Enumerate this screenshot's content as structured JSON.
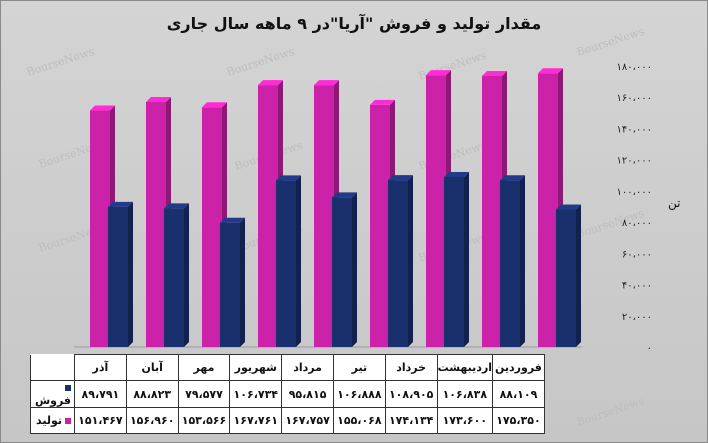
{
  "chart_data": {
    "type": "bar",
    "title": "مقدار تولید و فروش \"آریا\"در ۹ ماهه سال جاری",
    "ylabel": "تن",
    "ylim": [
      0,
      180000
    ],
    "y_ticks": [
      "۱۸۰،۰۰۰",
      "۱۶۰،۰۰۰",
      "۱۴۰،۰۰۰",
      "۱۲۰،۰۰۰",
      "۱۰۰،۰۰۰",
      "۸۰،۰۰۰",
      "۶۰،۰۰۰",
      "۴۰،۰۰۰",
      "۲۰،۰۰۰",
      "۰"
    ],
    "y_tick_values": [
      180000,
      160000,
      140000,
      120000,
      100000,
      80000,
      60000,
      40000,
      20000,
      0
    ],
    "categories": [
      "آذر",
      "آبان",
      "مهر",
      "شهریور",
      "مرداد",
      "تیر",
      "خرداد",
      "اردیبهشت",
      "فروردین"
    ],
    "series": [
      {
        "name": "فروش",
        "color": "#1a2f6e",
        "values": [
          89791,
          88823,
          79577,
          106734,
          95815,
          106888,
          108905,
          106838,
          88109
        ],
        "labels": [
          "۸۹،۷۹۱",
          "۸۸،۸۲۳",
          "۷۹،۵۷۷",
          "۱۰۶،۷۳۴",
          "۹۵،۸۱۵",
          "۱۰۶،۸۸۸",
          "۱۰۸،۹۰۵",
          "۱۰۶،۸۳۸",
          "۸۸،۱۰۹"
        ]
      },
      {
        "name": "تولید",
        "color": "#cc22aa",
        "values": [
          151467,
          156960,
          153566,
          167761,
          167757,
          155068,
          174134,
          173600,
          175350
        ],
        "labels": [
          "۱۵۱،۴۶۷",
          "۱۵۶،۹۶۰",
          "۱۵۳،۵۶۶",
          "۱۶۷،۷۶۱",
          "۱۶۷،۷۵۷",
          "۱۵۵،۰۶۸",
          "۱۷۴،۱۳۴",
          "۱۷۳،۶۰۰",
          "۱۷۵،۳۵۰"
        ]
      }
    ],
    "grid": false,
    "legend": "table-bottom",
    "watermark": "BourseNews"
  }
}
